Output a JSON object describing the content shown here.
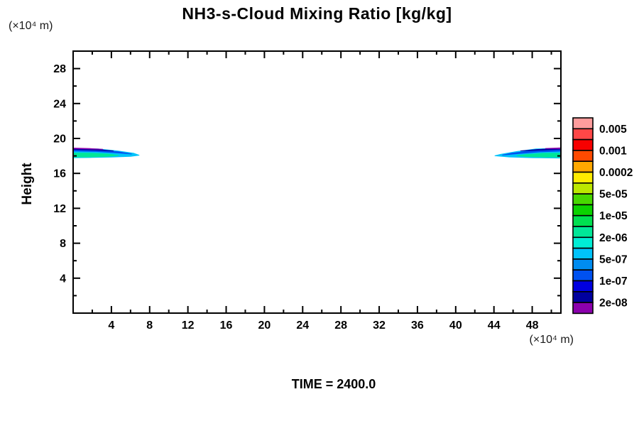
{
  "title": "NH3-s-Cloud Mixing Ratio [kg/kg]",
  "y_axis": {
    "label": "Height",
    "unit_label": "(×10⁴  m)",
    "major_ticks": [
      4,
      8,
      12,
      16,
      20,
      24,
      28
    ],
    "minor_ticks": [
      2,
      6,
      10,
      14,
      18,
      22,
      26,
      30
    ]
  },
  "x_axis": {
    "unit_label": "(×10⁴  m)",
    "major_ticks": [
      4,
      8,
      12,
      16,
      20,
      24,
      28,
      32,
      36,
      40,
      44,
      48
    ],
    "minor_ticks": [
      2,
      6,
      10,
      14,
      18,
      22,
      26,
      30,
      34,
      38,
      42,
      46,
      50
    ]
  },
  "footer": {
    "time_label": "TIME = 2400.0"
  },
  "legend": {
    "colors": [
      "#ff9c9c",
      "#ff4747",
      "#f70000",
      "#ff4a00",
      "#ffa800",
      "#ffec00",
      "#bce800",
      "#47d800",
      "#0bd300",
      "#00e050",
      "#00e798",
      "#00eed6",
      "#00c3fa",
      "#008cf0",
      "#0051f0",
      "#0000e0",
      "#00009e",
      "#8b00ad"
    ],
    "labels": [
      "0.005",
      "0.001",
      "0.0002",
      "5e-05",
      "1e-05",
      "2e-06",
      "5e-07",
      "1e-07",
      "2e-08"
    ],
    "first_label_boundary": 1,
    "label_every": 2
  },
  "chart_data": {
    "type": "heatmap",
    "title": "NH3-s-Cloud Mixing Ratio [kg/kg]",
    "xlabel": "(×10⁴ m)",
    "ylabel": "Height (×10⁴ m)",
    "xlim": [
      0,
      51
    ],
    "ylim": [
      0,
      30
    ],
    "grid": false,
    "legend_position": "right",
    "time": "2400.0",
    "contour_levels": [
      "2e-08",
      "5e-08",
      "1e-07",
      "2e-07",
      "5e-07",
      "1e-06",
      "2e-06",
      "5e-06",
      "1e-05",
      "2e-05",
      "5e-05",
      "0.0001",
      "0.0002",
      "0.0005",
      "0.001",
      "0.002",
      "0.005"
    ],
    "labeled_levels": [
      "0.005",
      "0.001",
      "0.0002",
      "5e-05",
      "1e-05",
      "2e-06",
      "5e-07",
      "1e-07",
      "2e-08"
    ],
    "features": [
      {
        "name": "left-cloud-band",
        "x_range": [
          0,
          6.9
        ],
        "height_range": [
          17.8,
          18.9
        ],
        "peak_level": "2e-06",
        "layers": [
          {
            "level": "1e-06",
            "color": "#00c3fa",
            "points": [
              [
                0,
                18.85
              ],
              [
                2.6,
                18.8
              ],
              [
                4.6,
                18.58
              ],
              [
                6.3,
                18.32
              ],
              [
                6.9,
                18.08
              ],
              [
                6.0,
                17.95
              ],
              [
                4.0,
                17.86
              ],
              [
                2.0,
                17.82
              ],
              [
                0,
                17.8
              ]
            ]
          },
          {
            "level": "5e-07",
            "color": "#0051f0",
            "points": [
              [
                0,
                18.75
              ],
              [
                2.6,
                18.66
              ],
              [
                4.8,
                18.46
              ],
              [
                6.1,
                18.22
              ],
              [
                4.6,
                18.35
              ],
              [
                2.4,
                18.5
              ],
              [
                0,
                18.57
              ]
            ]
          },
          {
            "level": "1e-07",
            "color": "#00009e",
            "points": [
              [
                0,
                18.85
              ],
              [
                2.2,
                18.76
              ],
              [
                4.2,
                18.58
              ],
              [
                2.2,
                18.67
              ],
              [
                0,
                18.74
              ]
            ]
          },
          {
            "level": "2e-08",
            "color": "#8b00ad",
            "points": [
              [
                0,
                18.9
              ],
              [
                1.6,
                18.85
              ],
              [
                3.1,
                18.76
              ],
              [
                1.6,
                18.8
              ],
              [
                0,
                18.84
              ]
            ]
          },
          {
            "level": "2e-06",
            "color": "#00e798",
            "points": [
              [
                0,
                18.33
              ],
              [
                1.9,
                18.31
              ],
              [
                3.6,
                18.22
              ],
              [
                4.75,
                18.06
              ],
              [
                3.6,
                17.95
              ],
              [
                1.9,
                17.89
              ],
              [
                0,
                17.88
              ]
            ]
          }
        ]
      },
      {
        "name": "right-cloud-band",
        "x_range": [
          44.1,
          51
        ],
        "height_range": [
          17.75,
          18.92
        ],
        "peak_level": "2e-06",
        "layers": [
          {
            "level": "1e-06",
            "color": "#00c3fa",
            "points": [
              [
                51,
                18.88
              ],
              [
                48.4,
                18.8
              ],
              [
                46.4,
                18.5
              ],
              [
                44.7,
                18.18
              ],
              [
                44.1,
                18.02
              ],
              [
                45.6,
                17.88
              ],
              [
                48.0,
                17.8
              ],
              [
                51,
                17.76
              ]
            ]
          },
          {
            "level": "5e-07",
            "color": "#0051f0",
            "points": [
              [
                51,
                18.76
              ],
              [
                48.2,
                18.62
              ],
              [
                45.8,
                18.3
              ],
              [
                44.9,
                18.1
              ],
              [
                46.6,
                18.28
              ],
              [
                48.8,
                18.46
              ],
              [
                51,
                18.56
              ]
            ]
          },
          {
            "level": "1e-07",
            "color": "#00009e",
            "points": [
              [
                51,
                18.86
              ],
              [
                48.6,
                18.74
              ],
              [
                46.8,
                18.58
              ],
              [
                48.6,
                18.66
              ],
              [
                51,
                18.76
              ]
            ]
          },
          {
            "level": "2e-08",
            "color": "#8b00ad",
            "points": [
              [
                51,
                18.92
              ],
              [
                49.4,
                18.85
              ],
              [
                51,
                18.83
              ]
            ]
          },
          {
            "level": "2e-06",
            "color": "#00e798",
            "points": [
              [
                51,
                18.32
              ],
              [
                49.2,
                18.3
              ],
              [
                47.5,
                18.17
              ],
              [
                46.4,
                18.03
              ],
              [
                47.5,
                17.93
              ],
              [
                49.2,
                17.88
              ],
              [
                51,
                17.86
              ]
            ]
          }
        ]
      }
    ]
  }
}
